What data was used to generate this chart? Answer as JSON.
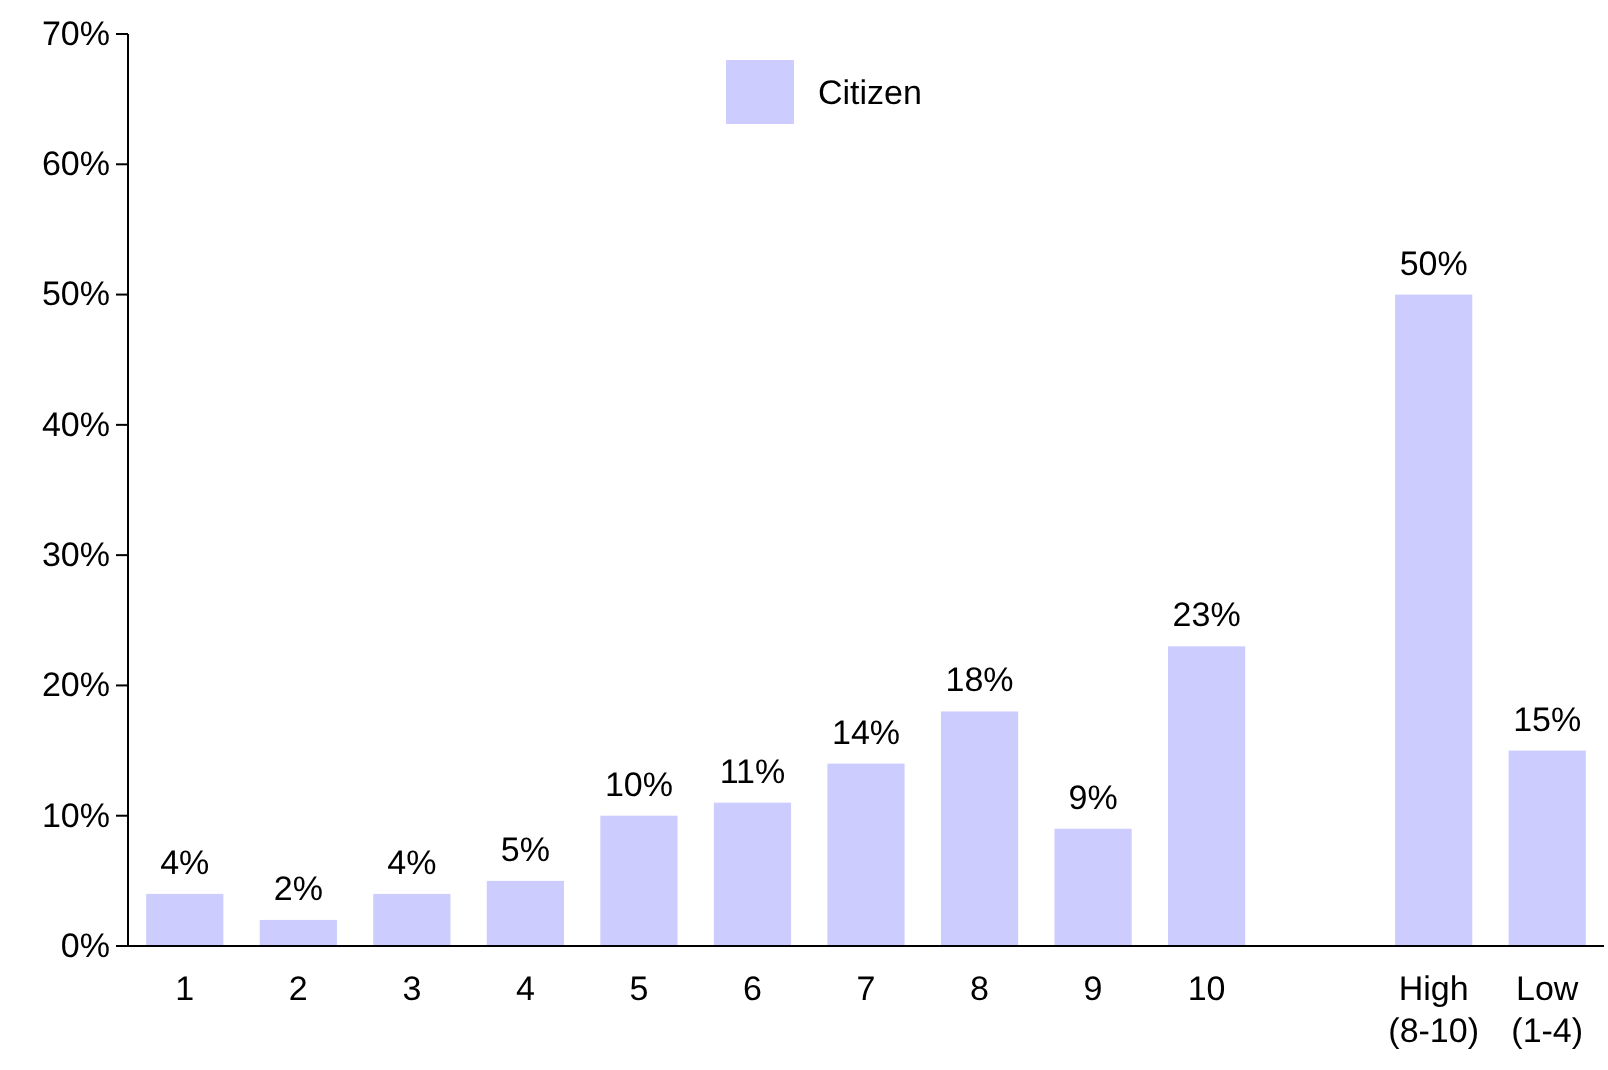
{
  "chart_data": {
    "type": "bar",
    "categories": [
      "1",
      "2",
      "3",
      "4",
      "5",
      "6",
      "7",
      "8",
      "9",
      "10",
      null,
      "High (8-10)",
      "Low (1-4)"
    ],
    "series": [
      {
        "name": "Citizen",
        "color": "#ccccff",
        "values": [
          4,
          2,
          4,
          5,
          10,
          11,
          14,
          18,
          9,
          23,
          null,
          50,
          15
        ],
        "value_labels": [
          "4%",
          "2%",
          "4%",
          "5%",
          "10%",
          "11%",
          "14%",
          "18%",
          "9%",
          "23%",
          null,
          "50%",
          "15%"
        ]
      }
    ],
    "ylim": [
      0,
      70
    ],
    "yticks": [
      {
        "value": 0,
        "label": "0%"
      },
      {
        "value": 10,
        "label": "10%"
      },
      {
        "value": 20,
        "label": "20%"
      },
      {
        "value": 30,
        "label": "30%"
      },
      {
        "value": 40,
        "label": "40%"
      },
      {
        "value": 50,
        "label": "50%"
      },
      {
        "value": 60,
        "label": "60%"
      },
      {
        "value": 70,
        "label": "70%"
      }
    ],
    "grid": false,
    "legend": "top"
  }
}
